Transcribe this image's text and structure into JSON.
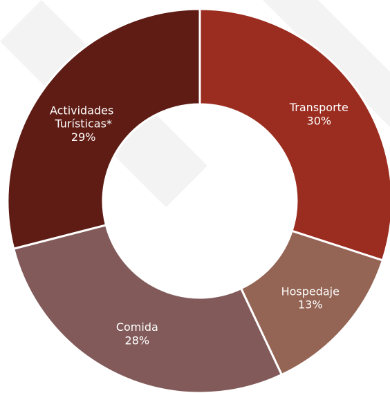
{
  "chart_data": {
    "type": "donut",
    "categories": [
      "Transporte",
      "Hospedaje",
      "Comida",
      "Actividades Turísticas*"
    ],
    "values": [
      30,
      13,
      28,
      29
    ],
    "value_labels": [
      "30%",
      "13%",
      "28%",
      "29%"
    ],
    "colors": [
      "#9b2d20",
      "#946454",
      "#825a5a",
      "#5e1c14"
    ]
  }
}
